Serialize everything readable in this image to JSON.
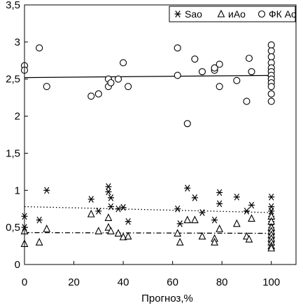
{
  "chart_data": {
    "type": "scatter",
    "title": "",
    "xlabel": "Прогноз,%",
    "ylabel": "",
    "xlim": [
      0,
      110
    ],
    "ylim": [
      0,
      3.5
    ],
    "x_ticks": [
      "0",
      "20",
      "40",
      "60",
      "80",
      "100"
    ],
    "y_ticks": [
      "0",
      "0,5",
      "1",
      "1,5",
      "2",
      "2,5",
      "3",
      "3,5"
    ],
    "grid": false,
    "legend_position": "top-right",
    "series": [
      {
        "name": "Sao",
        "marker": "asterisk",
        "points": [
          [
            0,
            0.65
          ],
          [
            0,
            0.5
          ],
          [
            6,
            0.6
          ],
          [
            9,
            1.0
          ],
          [
            27,
            0.88
          ],
          [
            30,
            0.72
          ],
          [
            34,
            1.05
          ],
          [
            34,
            0.98
          ],
          [
            35,
            0.9
          ],
          [
            35,
            0.78
          ],
          [
            38,
            0.75
          ],
          [
            40,
            0.77
          ],
          [
            42,
            0.58
          ],
          [
            62,
            0.75
          ],
          [
            63,
            0.55
          ],
          [
            66,
            1.03
          ],
          [
            69,
            0.9
          ],
          [
            72,
            0.7
          ],
          [
            77,
            0.6
          ],
          [
            79,
            0.97
          ],
          [
            79,
            0.82
          ],
          [
            86,
            0.91
          ],
          [
            90,
            0.72
          ],
          [
            92,
            0.8
          ],
          [
            100,
            0.91
          ],
          [
            100,
            0.78
          ],
          [
            100,
            0.72
          ],
          [
            100,
            0.65
          ],
          [
            100,
            0.58
          ],
          [
            100,
            0.5
          ],
          [
            100,
            0.45
          ],
          [
            100,
            0.4
          ],
          [
            100,
            0.35
          ],
          [
            100,
            0.3
          ]
        ],
        "trend": {
          "style": "dotted",
          "start": [
            0,
            0.78
          ],
          "end": [
            100,
            0.7
          ]
        }
      },
      {
        "name": "иАо",
        "marker": "triangle",
        "points": [
          [
            0,
            0.45
          ],
          [
            0,
            0.28
          ],
          [
            6,
            0.3
          ],
          [
            9,
            0.48
          ],
          [
            27,
            0.68
          ],
          [
            30,
            0.45
          ],
          [
            34,
            0.5
          ],
          [
            35,
            0.45
          ],
          [
            34,
            0.63
          ],
          [
            38,
            0.42
          ],
          [
            40,
            0.37
          ],
          [
            42,
            0.38
          ],
          [
            62,
            0.42
          ],
          [
            63,
            0.3
          ],
          [
            66,
            0.6
          ],
          [
            69,
            0.6
          ],
          [
            72,
            0.38
          ],
          [
            77,
            0.35
          ],
          [
            77,
            0.3
          ],
          [
            79,
            0.48
          ],
          [
            86,
            0.55
          ],
          [
            90,
            0.38
          ],
          [
            91,
            0.34
          ],
          [
            92,
            0.62
          ],
          [
            100,
            0.65
          ],
          [
            100,
            0.58
          ],
          [
            100,
            0.5
          ],
          [
            100,
            0.45
          ],
          [
            100,
            0.4
          ],
          [
            100,
            0.35
          ],
          [
            100,
            0.3
          ],
          [
            100,
            0.25
          ],
          [
            100,
            0.22
          ]
        ],
        "trend": {
          "style": "dashdot",
          "start": [
            0,
            0.43
          ],
          "end": [
            100,
            0.42
          ]
        }
      },
      {
        "name": "ФК Ао",
        "marker": "circle",
        "points": [
          [
            0,
            2.68
          ],
          [
            0,
            2.62
          ],
          [
            6,
            2.92
          ],
          [
            9,
            2.4
          ],
          [
            27,
            2.27
          ],
          [
            30,
            2.3
          ],
          [
            34,
            2.5
          ],
          [
            34,
            2.4
          ],
          [
            35,
            2.45
          ],
          [
            38,
            2.5
          ],
          [
            40,
            2.72
          ],
          [
            42,
            2.4
          ],
          [
            62,
            2.92
          ],
          [
            62,
            2.55
          ],
          [
            66,
            1.9
          ],
          [
            69,
            2.77
          ],
          [
            72,
            2.6
          ],
          [
            77,
            2.62
          ],
          [
            77,
            2.65
          ],
          [
            79,
            2.7
          ],
          [
            79,
            2.4
          ],
          [
            86,
            2.48
          ],
          [
            90,
            2.2
          ],
          [
            91,
            2.78
          ],
          [
            92,
            2.6
          ],
          [
            100,
            2.96
          ],
          [
            100,
            2.88
          ],
          [
            100,
            2.8
          ],
          [
            100,
            2.72
          ],
          [
            100,
            2.65
          ],
          [
            100,
            2.6
          ],
          [
            100,
            2.55
          ],
          [
            100,
            2.5
          ],
          [
            100,
            2.45
          ],
          [
            100,
            2.4
          ],
          [
            100,
            2.3
          ],
          [
            100,
            2.2
          ]
        ],
        "trend": {
          "style": "solid",
          "start": [
            0,
            2.52
          ],
          "end": [
            100,
            2.55
          ]
        }
      }
    ]
  }
}
